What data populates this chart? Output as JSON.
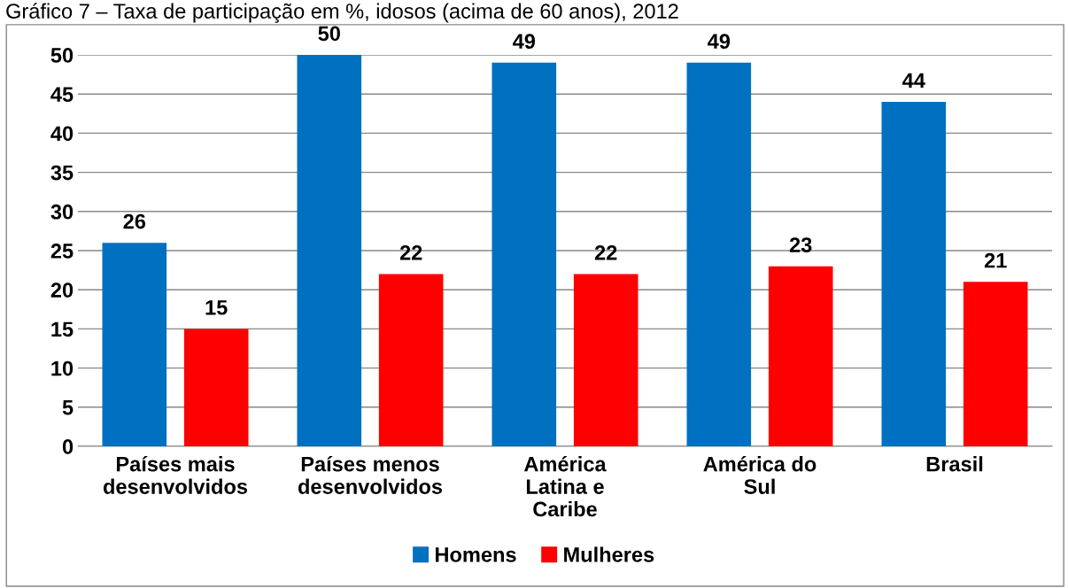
{
  "chart_data": {
    "type": "bar",
    "title": "Gráfico 7 – Taxa de participação em %, idosos (acima de 60 anos), 2012",
    "categories": [
      "Países mais\ndesenvolvidos",
      "Países menos\ndesenvolvidos",
      "América\nLatina e\nCaribe",
      "América do\nSul",
      "Brasil"
    ],
    "series": [
      {
        "name": "Homens",
        "color": "#0070c0",
        "values": [
          26,
          50,
          49,
          49,
          44
        ]
      },
      {
        "name": "Mulheres",
        "color": "#ff0000",
        "values": [
          15,
          22,
          22,
          23,
          21
        ]
      }
    ],
    "ylim": [
      0,
      50
    ],
    "yticks": [
      0,
      5,
      10,
      15,
      20,
      25,
      30,
      35,
      40,
      45,
      50
    ],
    "grid": "y",
    "legend": "bottom",
    "data_labels": true
  }
}
